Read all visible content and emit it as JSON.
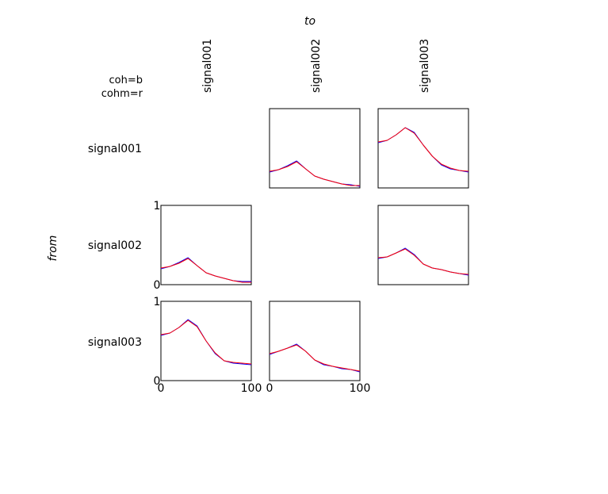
{
  "to_label": "to",
  "from_label": "from",
  "legend": [
    "coh=b",
    "cohm=r"
  ],
  "signals": [
    "signal001",
    "signal002",
    "signal003"
  ],
  "colors": {
    "coh": "#0000ff",
    "cohm": "#ff0000"
  },
  "chart_data": [
    {
      "type": "line",
      "from": "signal001",
      "to": "signal002",
      "x": [
        0,
        10,
        20,
        30,
        40,
        50,
        60,
        70,
        80,
        90,
        100
      ],
      "xlim": [
        0,
        100
      ],
      "ylim": [
        0,
        1
      ],
      "series": [
        {
          "name": "coh",
          "values": [
            0.2,
            0.23,
            0.28,
            0.34,
            0.24,
            0.15,
            0.11,
            0.08,
            0.05,
            0.04,
            0.02
          ]
        },
        {
          "name": "cohm",
          "values": [
            0.21,
            0.23,
            0.27,
            0.33,
            0.24,
            0.15,
            0.11,
            0.08,
            0.05,
            0.03,
            0.03
          ]
        }
      ]
    },
    {
      "type": "line",
      "from": "signal001",
      "to": "signal003",
      "x": [
        0,
        10,
        20,
        30,
        40,
        50,
        60,
        70,
        80,
        90,
        100
      ],
      "xlim": [
        0,
        100
      ],
      "ylim": [
        0,
        1
      ],
      "series": [
        {
          "name": "coh",
          "values": [
            0.57,
            0.6,
            0.67,
            0.76,
            0.7,
            0.54,
            0.4,
            0.29,
            0.24,
            0.22,
            0.2
          ]
        },
        {
          "name": "cohm",
          "values": [
            0.58,
            0.6,
            0.67,
            0.76,
            0.69,
            0.54,
            0.4,
            0.3,
            0.25,
            0.22,
            0.21
          ]
        }
      ]
    },
    {
      "type": "line",
      "from": "signal002",
      "to": "signal001",
      "x": [
        0,
        10,
        20,
        30,
        40,
        50,
        60,
        70,
        80,
        90,
        100
      ],
      "xlim": [
        0,
        100
      ],
      "ylim": [
        0,
        1
      ],
      "series": [
        {
          "name": "coh",
          "values": [
            0.2,
            0.23,
            0.28,
            0.34,
            0.24,
            0.15,
            0.11,
            0.08,
            0.05,
            0.04,
            0.04
          ]
        },
        {
          "name": "cohm",
          "values": [
            0.21,
            0.23,
            0.27,
            0.33,
            0.24,
            0.15,
            0.11,
            0.08,
            0.05,
            0.03,
            0.03
          ]
        }
      ]
    },
    {
      "type": "line",
      "from": "signal002",
      "to": "signal003",
      "x": [
        0,
        10,
        20,
        30,
        40,
        50,
        60,
        70,
        80,
        90,
        100
      ],
      "xlim": [
        0,
        100
      ],
      "ylim": [
        0,
        1
      ],
      "series": [
        {
          "name": "coh",
          "values": [
            0.33,
            0.35,
            0.4,
            0.46,
            0.38,
            0.26,
            0.21,
            0.19,
            0.16,
            0.14,
            0.12
          ]
        },
        {
          "name": "cohm",
          "values": [
            0.34,
            0.35,
            0.4,
            0.45,
            0.37,
            0.26,
            0.21,
            0.19,
            0.16,
            0.14,
            0.13
          ]
        }
      ]
    },
    {
      "type": "line",
      "from": "signal003",
      "to": "signal001",
      "x": [
        0,
        10,
        20,
        30,
        40,
        50,
        60,
        70,
        80,
        90,
        100
      ],
      "xlim": [
        0,
        100
      ],
      "ylim": [
        0,
        1
      ],
      "series": [
        {
          "name": "coh",
          "values": [
            0.57,
            0.6,
            0.67,
            0.77,
            0.69,
            0.5,
            0.34,
            0.25,
            0.22,
            0.21,
            0.2
          ]
        },
        {
          "name": "cohm",
          "values": [
            0.58,
            0.6,
            0.67,
            0.76,
            0.68,
            0.5,
            0.35,
            0.25,
            0.23,
            0.22,
            0.21
          ]
        }
      ]
    },
    {
      "type": "line",
      "from": "signal003",
      "to": "signal002",
      "x": [
        0,
        10,
        20,
        30,
        40,
        50,
        60,
        70,
        80,
        90,
        100
      ],
      "xlim": [
        0,
        100
      ],
      "ylim": [
        0,
        1
      ],
      "series": [
        {
          "name": "coh",
          "values": [
            0.33,
            0.37,
            0.41,
            0.46,
            0.37,
            0.26,
            0.2,
            0.18,
            0.15,
            0.14,
            0.11
          ]
        },
        {
          "name": "cohm",
          "values": [
            0.34,
            0.37,
            0.41,
            0.45,
            0.37,
            0.26,
            0.21,
            0.18,
            0.16,
            0.14,
            0.12
          ]
        }
      ]
    }
  ],
  "ticks": {
    "x": [
      "0",
      "100"
    ],
    "y": [
      "0",
      "1"
    ]
  }
}
